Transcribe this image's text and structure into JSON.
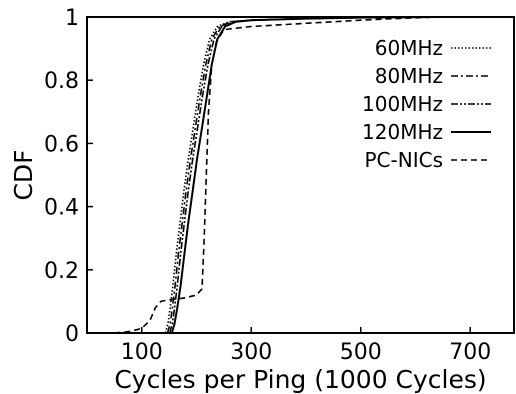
{
  "chart_data": {
    "type": "line",
    "title": "",
    "xlabel": "Cycles per Ping (1000 Cycles)",
    "ylabel": "CDF",
    "xlim": [
      0,
      780
    ],
    "ylim": [
      0,
      1
    ],
    "x_ticks": [
      100,
      300,
      500,
      700
    ],
    "x_tick_labels": [
      "100",
      "300",
      "500",
      "700"
    ],
    "y_ticks": [
      0,
      0.2,
      0.4,
      0.6,
      0.8,
      1
    ],
    "y_tick_labels": [
      "0",
      "0.2",
      "0.4",
      "0.6",
      "0.8",
      "1"
    ],
    "grid": false,
    "legend_position": "top-right",
    "series": [
      {
        "name": "60MHz",
        "style": "dotted",
        "x": [
          143,
          148,
          152,
          157,
          163,
          170,
          177,
          185,
          194,
          203,
          213,
          224,
          238,
          260,
          300,
          400,
          500,
          640
        ],
        "y": [
          0,
          0.03,
          0.08,
          0.15,
          0.25,
          0.35,
          0.45,
          0.55,
          0.65,
          0.75,
          0.85,
          0.93,
          0.97,
          0.985,
          0.99,
          0.995,
          0.998,
          1
        ]
      },
      {
        "name": "80MHz",
        "style": "dashdot",
        "x": [
          147,
          152,
          156,
          161,
          167,
          174,
          181,
          189,
          198,
          207,
          217,
          228,
          242,
          264,
          300,
          400,
          500,
          640
        ],
        "y": [
          0,
          0.03,
          0.08,
          0.15,
          0.25,
          0.35,
          0.45,
          0.55,
          0.65,
          0.75,
          0.85,
          0.93,
          0.97,
          0.985,
          0.99,
          0.995,
          0.998,
          1
        ]
      },
      {
        "name": "100MHz",
        "style": "dashdotdot",
        "x": [
          151,
          156,
          160,
          165,
          171,
          178,
          185,
          193,
          202,
          211,
          221,
          232,
          246,
          268,
          300,
          400,
          500,
          640
        ],
        "y": [
          0,
          0.03,
          0.08,
          0.15,
          0.25,
          0.35,
          0.45,
          0.55,
          0.65,
          0.75,
          0.85,
          0.93,
          0.97,
          0.985,
          0.99,
          0.995,
          0.998,
          1
        ]
      },
      {
        "name": "120MHz",
        "style": "solid",
        "x": [
          155,
          160,
          165,
          171,
          178,
          185,
          193,
          201,
          210,
          219,
          228,
          238,
          252,
          272,
          300,
          400,
          500,
          640
        ],
        "y": [
          0,
          0.03,
          0.08,
          0.15,
          0.25,
          0.35,
          0.45,
          0.55,
          0.65,
          0.75,
          0.85,
          0.93,
          0.97,
          0.985,
          0.99,
          0.995,
          0.998,
          1
        ]
      },
      {
        "name": "PC-NICs",
        "style": "dashed",
        "x": [
          50,
          80,
          100,
          115,
          125,
          135,
          150,
          175,
          200,
          210,
          214,
          218,
          222,
          228,
          236,
          250,
          300,
          400,
          500,
          560,
          640
        ],
        "y": [
          0,
          0.005,
          0.015,
          0.04,
          0.08,
          0.1,
          0.105,
          0.11,
          0.12,
          0.14,
          0.3,
          0.5,
          0.7,
          0.85,
          0.92,
          0.96,
          0.97,
          0.98,
          0.99,
          0.995,
          1
        ]
      }
    ]
  }
}
